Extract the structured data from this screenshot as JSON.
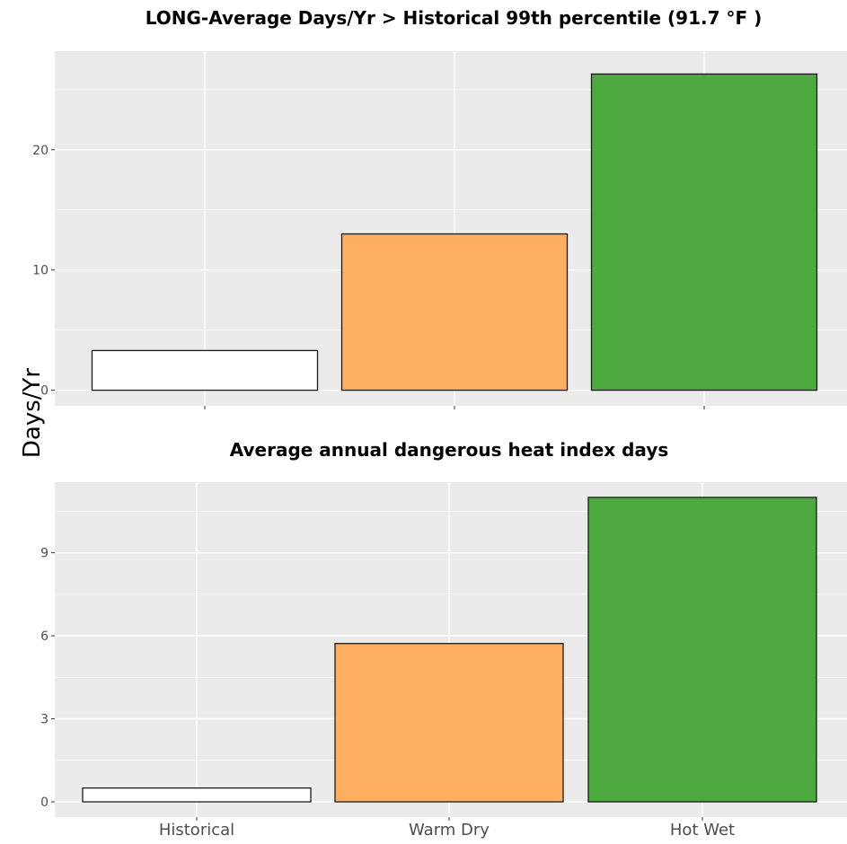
{
  "ylabel": "Days/Yr",
  "chart_data": [
    {
      "type": "bar",
      "title": "LONG-Average Days/Yr > Historical 99th percentile (91.7 °F )",
      "categories": [
        "Historical",
        "Warm Dry",
        "Hot Wet"
      ],
      "show_category_labels": false,
      "values": [
        3.3,
        13.0,
        26.3
      ],
      "colors": [
        "#ffffff",
        "#fdae61",
        "#4daa3f"
      ],
      "yticks": [
        0,
        10,
        20
      ],
      "ylim": [
        -1.3,
        28.2
      ],
      "grid": true
    },
    {
      "type": "bar",
      "title": "Average annual dangerous heat index days",
      "categories": [
        "Historical",
        "Warm Dry",
        "Hot Wet"
      ],
      "show_category_labels": true,
      "values": [
        0.5,
        5.72,
        11.0
      ],
      "colors": [
        "#ffffff",
        "#fdae61",
        "#4daa3f"
      ],
      "yticks": [
        0,
        3,
        6,
        9
      ],
      "ylim": [
        -0.55,
        11.55
      ],
      "grid": true
    }
  ]
}
